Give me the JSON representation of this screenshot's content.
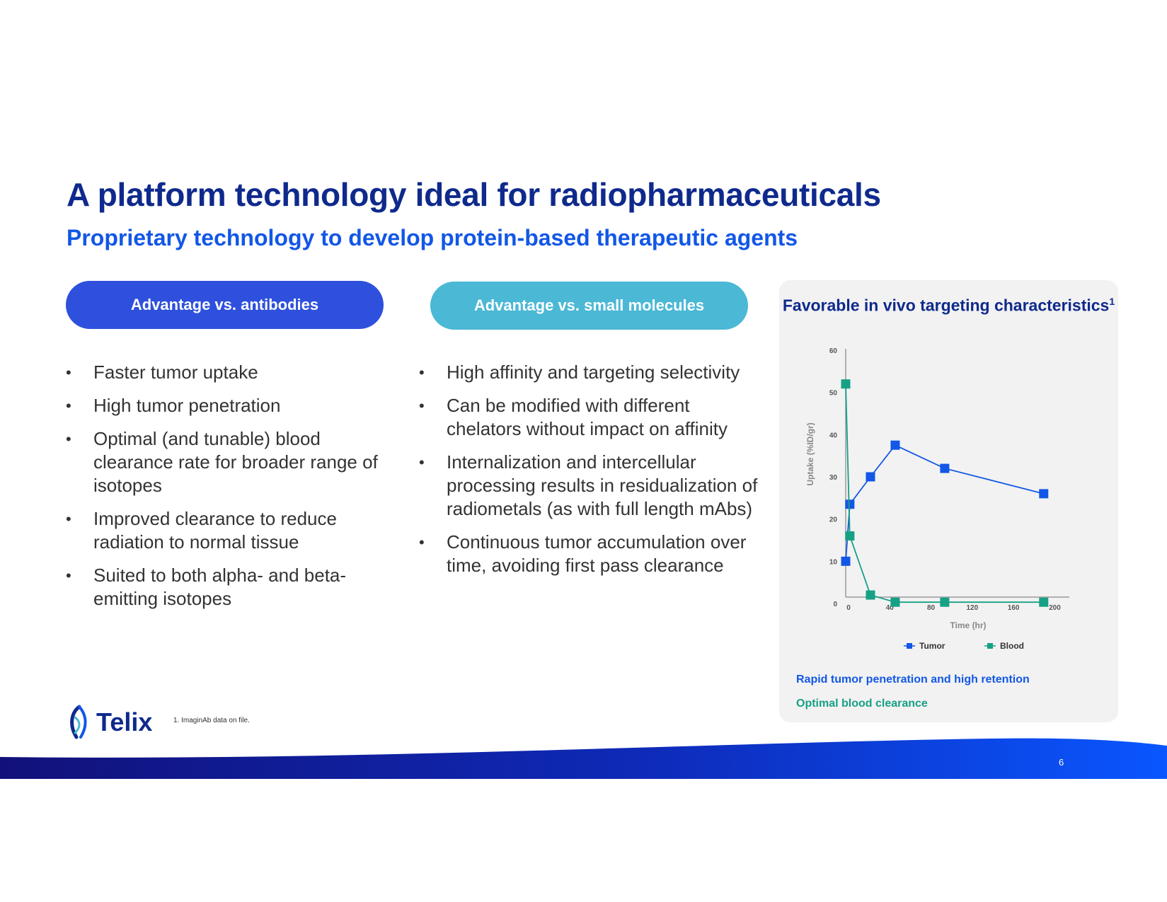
{
  "slide": {
    "title": "A platform technology ideal for radiopharmaceuticals",
    "subtitle": "Proprietary technology to develop protein-based therapeutic agents",
    "page_number": "6",
    "footnote": "1. ImaginAb data on file.",
    "logo_text": "Telix"
  },
  "columns": [
    {
      "heading": "Advantage vs. antibodies",
      "bullets": [
        "Faster tumor uptake",
        "High tumor penetration",
        "Optimal (and tunable) blood clearance rate for broader range of isotopes",
        "Improved clearance to reduce radiation to normal tissue",
        "Suited to both alpha- and beta-emitting isotopes"
      ]
    },
    {
      "heading": "Advantage vs. small molecules",
      "bullets": [
        "High affinity and targeting selectivity",
        "Can be modified with different chelators without impact on affinity",
        "Internalization and intercellular processing results in residualization of radiometals (as with full length mAbs)",
        "Continuous tumor accumulation over time, avoiding first pass clearance"
      ]
    }
  ],
  "panel": {
    "title": "Favorable in vivo targeting characteristics",
    "title_sup": "1",
    "caption_tumor": "Rapid tumor penetration and high retention",
    "caption_blood": "Optimal blood clearance"
  },
  "colors": {
    "tumor": "#1257e6",
    "blood": "#16a085",
    "title": "#0f2a8c",
    "pill_a": "#2e50dd",
    "pill_b": "#4bb8d6"
  },
  "chart_data": {
    "type": "line",
    "title": "",
    "xlabel": "Time (hr)",
    "ylabel": "Uptake (%ID/gr)",
    "xlim": [
      0,
      210
    ],
    "ylim": [
      0,
      60
    ],
    "xticks": [
      0,
      40,
      80,
      120,
      160,
      200
    ],
    "yticks": [
      0,
      10,
      20,
      30,
      40,
      50,
      60
    ],
    "legend_position": "bottom",
    "series": [
      {
        "name": "Tumor",
        "color": "#1257e6",
        "x": [
          0,
          4,
          24,
          48,
          96,
          192
        ],
        "y": [
          10,
          23.5,
          30,
          37.5,
          32,
          26
        ]
      },
      {
        "name": "Blood",
        "color": "#16a085",
        "x": [
          0,
          4,
          24,
          48,
          96,
          192
        ],
        "y": [
          52,
          16,
          2,
          0.3,
          0.3,
          0.3
        ]
      }
    ]
  }
}
